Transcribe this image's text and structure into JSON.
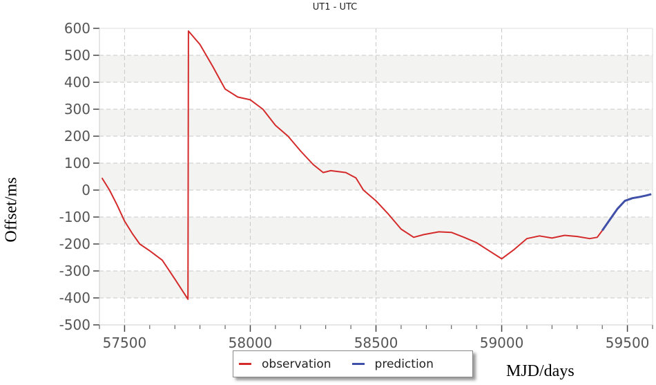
{
  "chart_data": {
    "type": "line",
    "title": "UT1 - UTC",
    "xlabel": "MJD/days",
    "ylabel": "Offset/ms",
    "xlim": [
      57400,
      59600
    ],
    "ylim": [
      -500,
      600
    ],
    "xticks": [
      57500,
      58000,
      58500,
      59000,
      59500
    ],
    "yticks": [
      600,
      500,
      400,
      300,
      200,
      100,
      0,
      -100,
      -200,
      -300,
      -400,
      -500
    ],
    "grid": true,
    "legend_position": "bottom-center",
    "series": [
      {
        "name": "observation",
        "color": "#d42a2a",
        "x": [
          57410,
          57440,
          57470,
          57500,
          57530,
          57560,
          57600,
          57650,
          57700,
          57752,
          57754,
          57800,
          57850,
          57900,
          57950,
          58000,
          58050,
          58100,
          58150,
          58200,
          58250,
          58290,
          58320,
          58380,
          58420,
          58450,
          58500,
          58550,
          58600,
          58650,
          58690,
          58750,
          58800,
          58850,
          58900,
          58950,
          59000,
          59050,
          59100,
          59150,
          59200,
          59250,
          59300,
          59350,
          59380,
          59400
        ],
        "y": [
          45,
          0,
          -55,
          -115,
          -160,
          -200,
          -225,
          -260,
          -330,
          -405,
          590,
          540,
          460,
          375,
          345,
          335,
          300,
          240,
          200,
          145,
          95,
          65,
          72,
          65,
          45,
          0,
          -40,
          -90,
          -145,
          -175,
          -165,
          -155,
          -157,
          -175,
          -195,
          -225,
          -255,
          -220,
          -180,
          -170,
          -178,
          -168,
          -172,
          -180,
          -175,
          -150
        ]
      },
      {
        "name": "prediction",
        "color": "#4050a8",
        "x": [
          59400,
          59430,
          59460,
          59490,
          59520,
          59550,
          59575,
          59595
        ],
        "y": [
          -150,
          -110,
          -70,
          -40,
          -30,
          -25,
          -20,
          -15
        ]
      }
    ]
  }
}
